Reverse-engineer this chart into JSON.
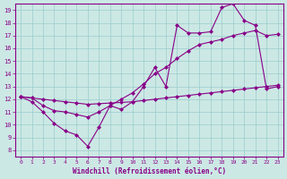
{
  "xlabel": "Windchill (Refroidissement éolien,°C)",
  "bg_color": "#cce8e4",
  "line_color": "#880088",
  "grid_color": "#99cccc",
  "xlim": [
    -0.5,
    23.5
  ],
  "ylim": [
    7.5,
    19.5
  ],
  "xticks": [
    0,
    1,
    2,
    3,
    4,
    5,
    6,
    7,
    8,
    9,
    10,
    11,
    12,
    13,
    14,
    15,
    16,
    17,
    18,
    19,
    20,
    21,
    22,
    23
  ],
  "yticks": [
    8,
    9,
    10,
    11,
    12,
    13,
    14,
    15,
    16,
    17,
    18,
    19
  ],
  "line1_x": [
    0,
    1,
    2,
    3,
    4,
    5,
    6,
    7,
    8,
    9,
    10,
    11,
    12,
    13,
    14,
    15,
    16,
    17,
    18,
    19,
    20,
    21,
    22,
    23
  ],
  "line1_y": [
    12.2,
    11.8,
    11.0,
    10.1,
    9.5,
    9.2,
    8.3,
    9.8,
    11.5,
    11.2,
    11.8,
    13.0,
    14.5,
    13.0,
    17.8,
    17.2,
    17.2,
    17.3,
    19.2,
    19.5,
    18.2,
    17.8,
    12.8,
    13.0
  ],
  "line2_x": [
    0,
    1,
    2,
    3,
    4,
    5,
    6,
    7,
    8,
    9,
    10,
    11,
    12,
    13,
    14,
    15,
    16,
    17,
    18,
    19,
    20,
    21,
    22,
    23
  ],
  "line2_y": [
    12.2,
    12.1,
    11.5,
    11.1,
    11.0,
    10.8,
    10.6,
    11.0,
    11.5,
    12.0,
    12.5,
    13.2,
    14.0,
    14.5,
    15.2,
    15.8,
    16.3,
    16.5,
    16.7,
    17.0,
    17.2,
    17.4,
    17.0,
    17.1
  ],
  "line3_x": [
    0,
    1,
    2,
    3,
    4,
    5,
    6,
    7,
    8,
    9,
    10,
    11,
    12,
    13,
    14,
    15,
    16,
    17,
    18,
    19,
    20,
    21,
    22,
    23
  ],
  "line3_y": [
    12.2,
    12.1,
    12.0,
    11.9,
    11.8,
    11.7,
    11.6,
    11.65,
    11.7,
    11.75,
    11.8,
    11.9,
    12.0,
    12.1,
    12.2,
    12.3,
    12.4,
    12.5,
    12.6,
    12.7,
    12.8,
    12.9,
    13.0,
    13.1
  ],
  "marker": "D",
  "markersize": 2,
  "linewidth": 0.8
}
